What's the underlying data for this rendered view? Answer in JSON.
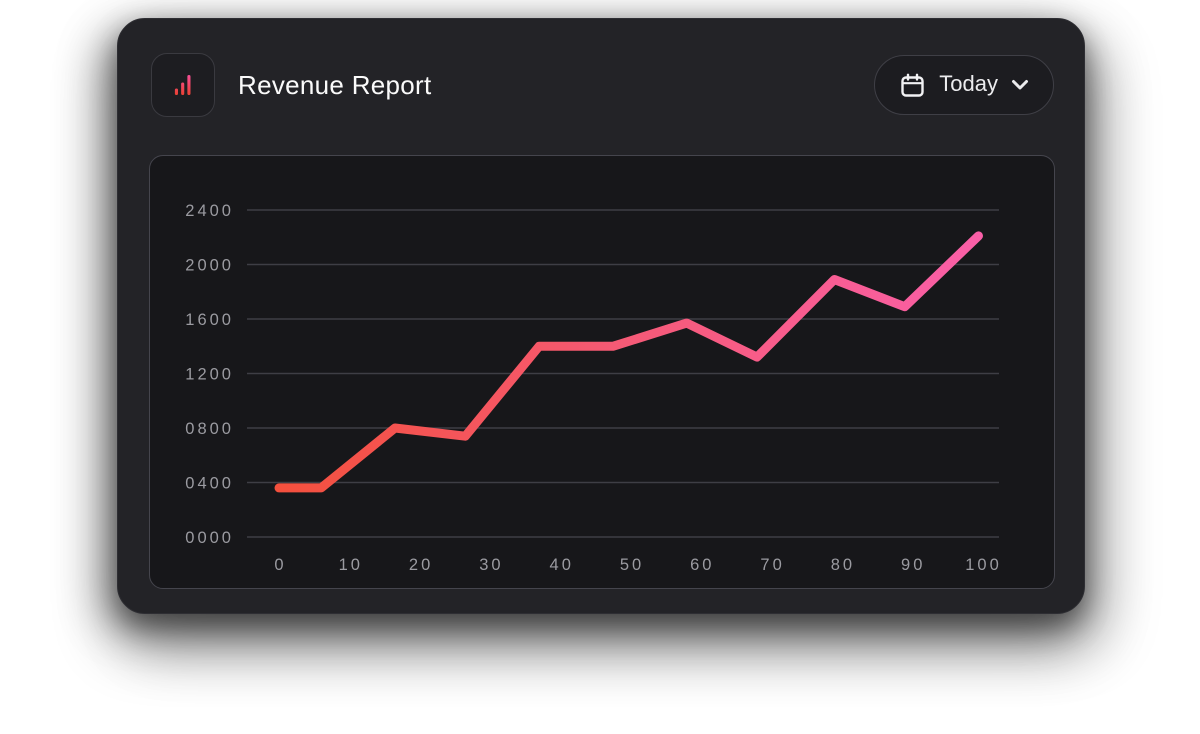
{
  "header": {
    "title": "Revenue Report",
    "logo_icon": "bar-chart-icon",
    "period_button": {
      "label": "Today",
      "left_icon": "calendar-icon",
      "right_icon": "chevron-down-icon"
    }
  },
  "colors": {
    "card_background": "#232327",
    "panel_background": "#17171a",
    "panel_border": "#45454d",
    "grid_line": "#3e3e45",
    "tick_label": "#9b9ba1",
    "title_text": "#fafafa",
    "accent_red": "#f4503d",
    "accent_pink": "#fa5fa8"
  },
  "chart_data": {
    "type": "line",
    "title": "Revenue Report",
    "xlabel": "",
    "ylabel": "",
    "xlim": [
      0,
      100
    ],
    "ylim": [
      0,
      2400
    ],
    "x_ticks": [
      "0",
      "10",
      "20",
      "30",
      "40",
      "50",
      "60",
      "70",
      "80",
      "90",
      "100"
    ],
    "y_tick_labels": [
      "2400",
      "2000",
      "1600",
      "1200",
      "0800",
      "0400",
      "0000"
    ],
    "grid": "horizontal",
    "legend": "none",
    "line_gradient": [
      "#f4503d",
      "#f65a77",
      "#fa5fa8"
    ],
    "line_width": 9,
    "x": [
      0,
      6,
      16.5,
      26.5,
      37,
      47.5,
      58,
      68,
      79,
      89,
      99.5
    ],
    "series": [
      {
        "name": "Revenue",
        "values": [
          360,
          360,
          800,
          740,
          1400,
          1400,
          1570,
          1320,
          1890,
          1690,
          2210
        ]
      }
    ]
  }
}
